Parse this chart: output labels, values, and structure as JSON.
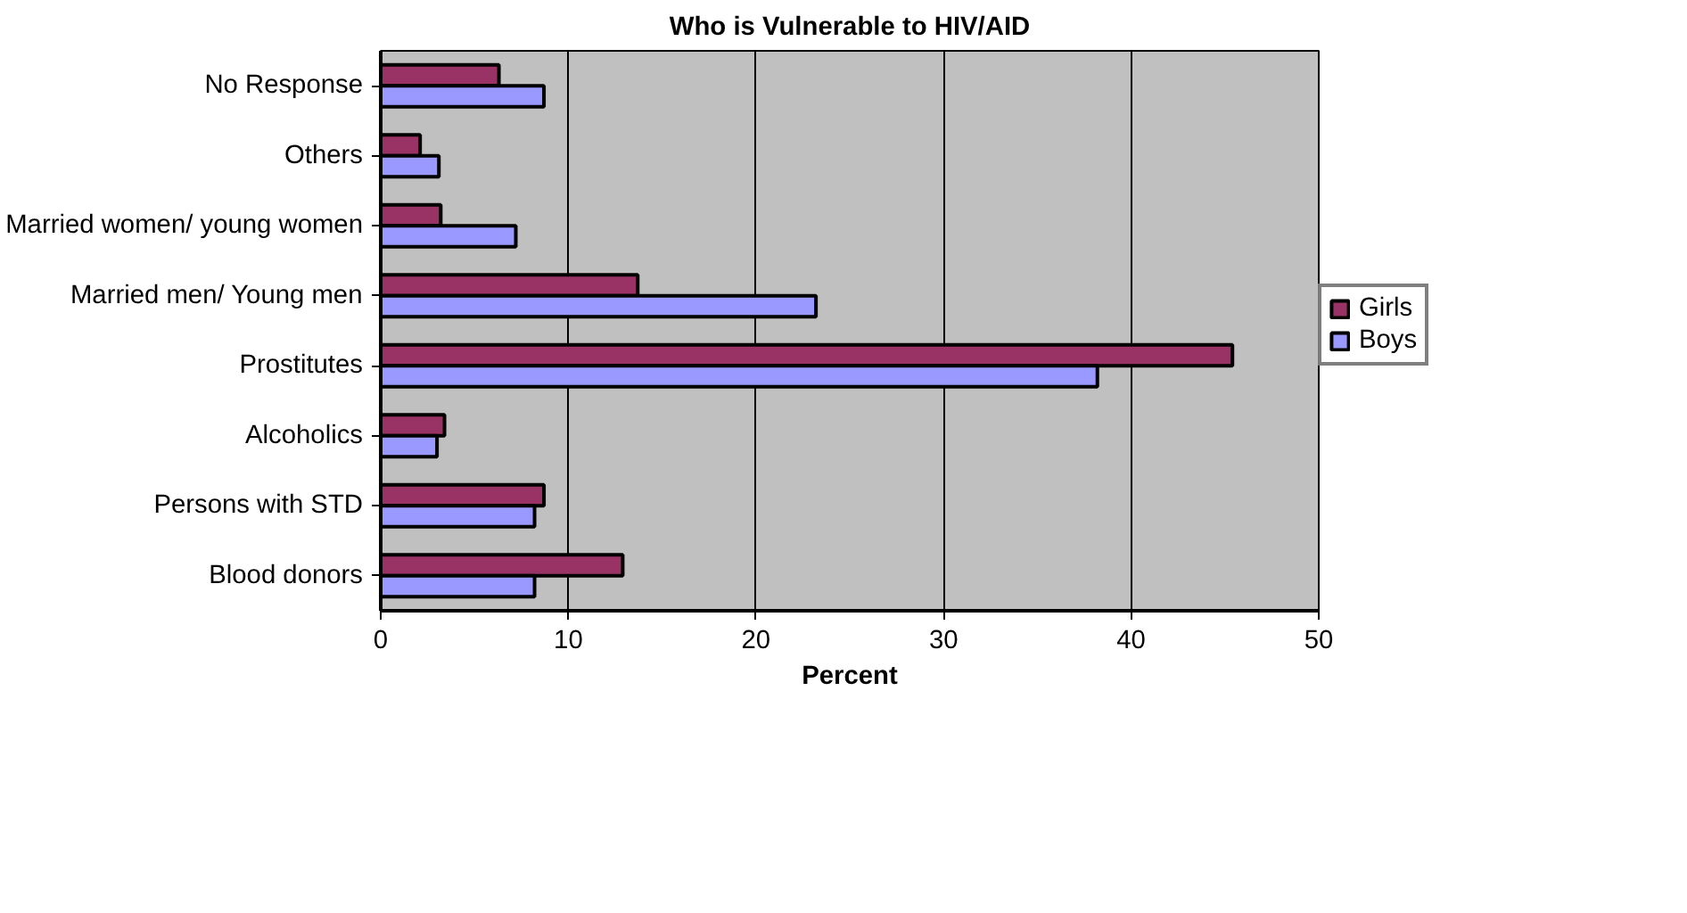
{
  "chart_data": {
    "type": "bar",
    "orientation": "horizontal",
    "title": "Who is Vulnerable to HIV/AID",
    "xlabel": "Percent",
    "categories": [
      "No Response",
      "Others",
      "Married women/ young women",
      "Married men/ Young men",
      "Prostitutes",
      "Alcoholics",
      "Persons with STD",
      "Blood donors"
    ],
    "series": [
      {
        "name": "Girls",
        "color": "#993366",
        "values": [
          6.3,
          2.1,
          3.2,
          13.7,
          45.4,
          3.4,
          8.7,
          12.9
        ]
      },
      {
        "name": "Boys",
        "color": "#9999ff",
        "values": [
          8.7,
          3.1,
          7.2,
          23.2,
          38.2,
          3.0,
          8.2,
          8.2
        ]
      }
    ],
    "xlim": [
      0,
      50
    ],
    "xticks": [
      0,
      10,
      20,
      30,
      40,
      50
    ],
    "grid": "x",
    "legend": "right"
  }
}
